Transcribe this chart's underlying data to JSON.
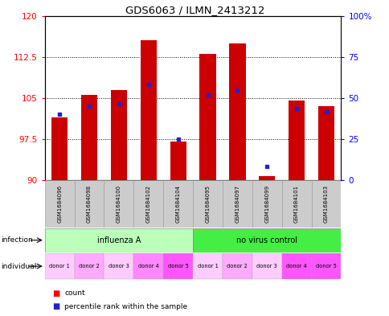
{
  "title": "GDS6063 / ILMN_2413212",
  "samples": [
    "GSM1684096",
    "GSM1684098",
    "GSM1684100",
    "GSM1684102",
    "GSM1684104",
    "GSM1684095",
    "GSM1684097",
    "GSM1684099",
    "GSM1684101",
    "GSM1684103"
  ],
  "bar_heights": [
    101.5,
    105.5,
    106.5,
    115.5,
    97.0,
    113.0,
    115.0,
    90.8,
    104.5,
    103.5
  ],
  "blue_values": [
    102.0,
    103.5,
    104.0,
    107.5,
    97.5,
    105.5,
    106.5,
    92.5,
    103.0,
    102.5
  ],
  "ylim_left": [
    90,
    120
  ],
  "ylim_right": [
    0,
    100
  ],
  "yticks_left": [
    90,
    97.5,
    105,
    112.5,
    120
  ],
  "ytick_labels_left": [
    "90",
    "97.5",
    "105",
    "112.5",
    "120"
  ],
  "yticks_right": [
    0,
    25,
    50,
    75,
    100
  ],
  "ytick_labels_right": [
    "0",
    "25",
    "50",
    "75",
    "100%"
  ],
  "bar_color": "#cc0000",
  "blue_color": "#2222cc",
  "bar_width": 0.55,
  "infection_groups": [
    {
      "label": "influenza A",
      "start": 0,
      "end": 5,
      "color": "#bbffbb"
    },
    {
      "label": "no virus control",
      "start": 5,
      "end": 10,
      "color": "#44ee44"
    }
  ],
  "individual_labels": [
    "donor 1",
    "donor 2",
    "donor 3",
    "donor 4",
    "donor 5",
    "donor 1",
    "donor 2",
    "donor 3",
    "donor 4",
    "donor 5"
  ],
  "individual_colors": [
    "#ffccff",
    "#ffaaff",
    "#ffccff",
    "#ff88ff",
    "#ff55ff",
    "#ffccff",
    "#ffaaff",
    "#ffccff",
    "#ff55ff",
    "#ff55ff"
  ],
  "baseline": 90,
  "sample_bg": "#cccccc"
}
